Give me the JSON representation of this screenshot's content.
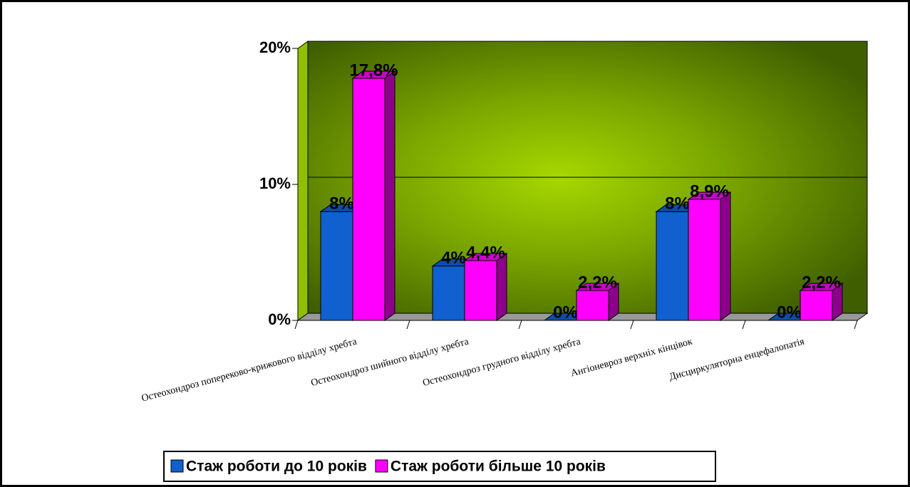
{
  "chart_data": {
    "type": "bar3d",
    "categories": [
      "Остеохондроз попереково-крижового відділу хребта",
      "Остеохондроз шийного відділу хребта",
      "Остеохондроз грудного відділу хребта",
      "Ангіоневроз верхніх кінцівок",
      "Дисциркуляторна енцефалопатія"
    ],
    "series": [
      {
        "name": "Стаж роботи до 10 років",
        "color": "#1060d0",
        "values": [
          8,
          4,
          0,
          8,
          0
        ],
        "value_labels": [
          "8%",
          "4%",
          "0%",
          "8%",
          "0%"
        ]
      },
      {
        "name": "Стаж роботи більше 10 років",
        "color": "#ff00ff",
        "values": [
          17.8,
          4.4,
          2.2,
          8.9,
          2.2
        ],
        "value_labels": [
          "17,8%",
          "4,4%",
          "2,2%",
          "8,9%",
          "2,2%"
        ]
      }
    ],
    "ylim": [
      0,
      20
    ],
    "yticks": [
      {
        "value": 0,
        "label": "0%"
      },
      {
        "value": 10,
        "label": "10%"
      },
      {
        "value": 20,
        "label": "20%"
      }
    ],
    "grid": true
  }
}
